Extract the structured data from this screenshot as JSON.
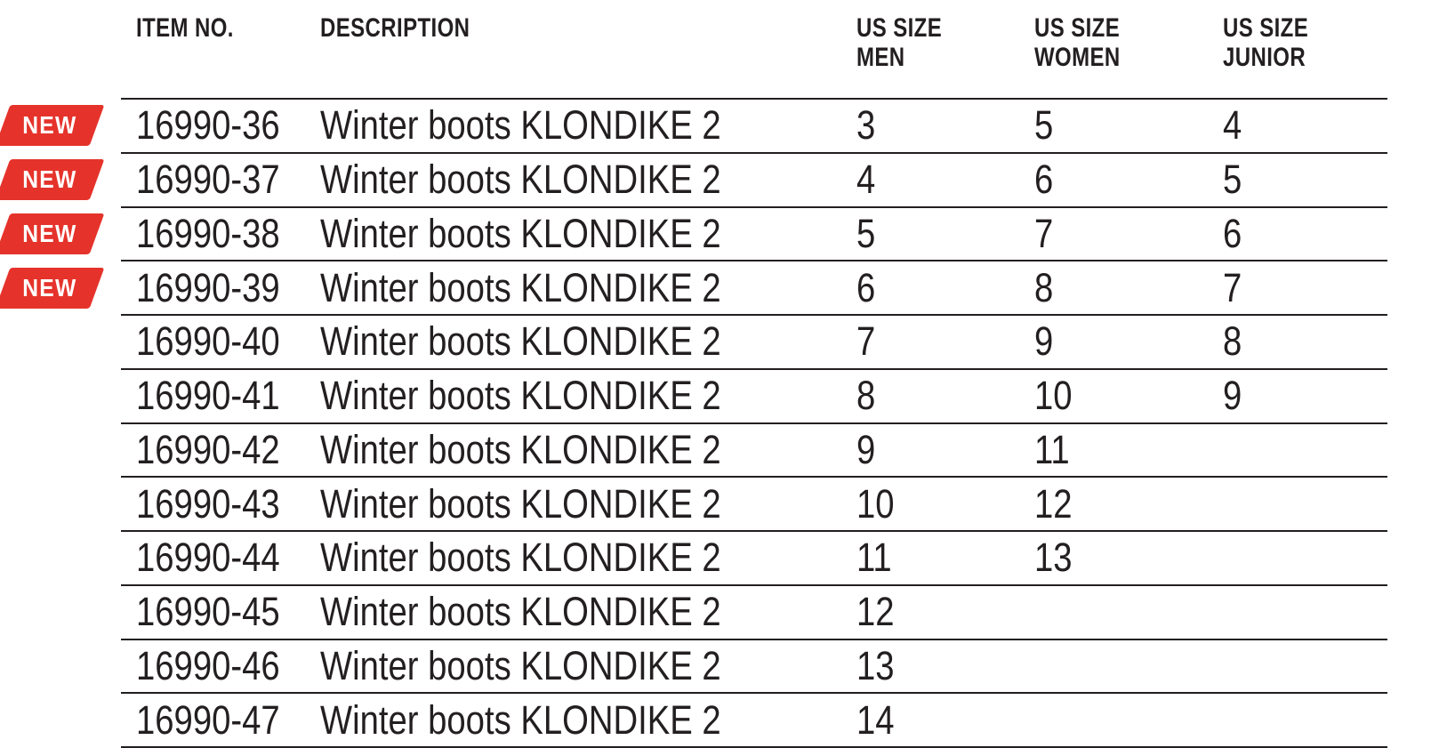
{
  "badge": {
    "label": "NEW",
    "color": "#e5332b",
    "text_color": "#ffffff"
  },
  "colors": {
    "text": "#231f20",
    "line": "#231f20",
    "background": "#ffffff"
  },
  "table": {
    "columns": [
      {
        "key": "item",
        "label": "ITEM NO."
      },
      {
        "key": "desc",
        "label": "DESCRIPTION"
      },
      {
        "key": "us_men",
        "label": "US SIZE\nMEN"
      },
      {
        "key": "us_women",
        "label": "US SIZE\nWOMEN"
      },
      {
        "key": "us_junior",
        "label": "US SIZE\nJUNIOR"
      }
    ],
    "rows": [
      {
        "new": true,
        "item": "16990-36",
        "desc": "Winter boots KLONDIKE 2",
        "us_men": "3",
        "us_women": "5",
        "us_junior": "4"
      },
      {
        "new": true,
        "item": "16990-37",
        "desc": "Winter boots KLONDIKE 2",
        "us_men": "4",
        "us_women": "6",
        "us_junior": "5"
      },
      {
        "new": true,
        "item": "16990-38",
        "desc": "Winter boots KLONDIKE 2",
        "us_men": "5",
        "us_women": "7",
        "us_junior": "6"
      },
      {
        "new": true,
        "item": "16990-39",
        "desc": "Winter boots KLONDIKE 2",
        "us_men": "6",
        "us_women": "8",
        "us_junior": "7"
      },
      {
        "new": false,
        "item": "16990-40",
        "desc": "Winter boots KLONDIKE 2",
        "us_men": "7",
        "us_women": "9",
        "us_junior": "8"
      },
      {
        "new": false,
        "item": "16990-41",
        "desc": "Winter boots KLONDIKE 2",
        "us_men": "8",
        "us_women": "10",
        "us_junior": "9"
      },
      {
        "new": false,
        "item": "16990-42",
        "desc": "Winter boots KLONDIKE 2",
        "us_men": "9",
        "us_women": "11",
        "us_junior": ""
      },
      {
        "new": false,
        "item": "16990-43",
        "desc": "Winter boots KLONDIKE 2",
        "us_men": "10",
        "us_women": "12",
        "us_junior": ""
      },
      {
        "new": false,
        "item": "16990-44",
        "desc": "Winter boots KLONDIKE 2",
        "us_men": "11",
        "us_women": "13",
        "us_junior": ""
      },
      {
        "new": false,
        "item": "16990-45",
        "desc": "Winter boots KLONDIKE 2",
        "us_men": "12",
        "us_women": "",
        "us_junior": ""
      },
      {
        "new": false,
        "item": "16990-46",
        "desc": "Winter boots KLONDIKE 2",
        "us_men": "13",
        "us_women": "",
        "us_junior": ""
      },
      {
        "new": false,
        "item": "16990-47",
        "desc": "Winter boots KLONDIKE 2",
        "us_men": "14",
        "us_women": "",
        "us_junior": ""
      }
    ]
  }
}
